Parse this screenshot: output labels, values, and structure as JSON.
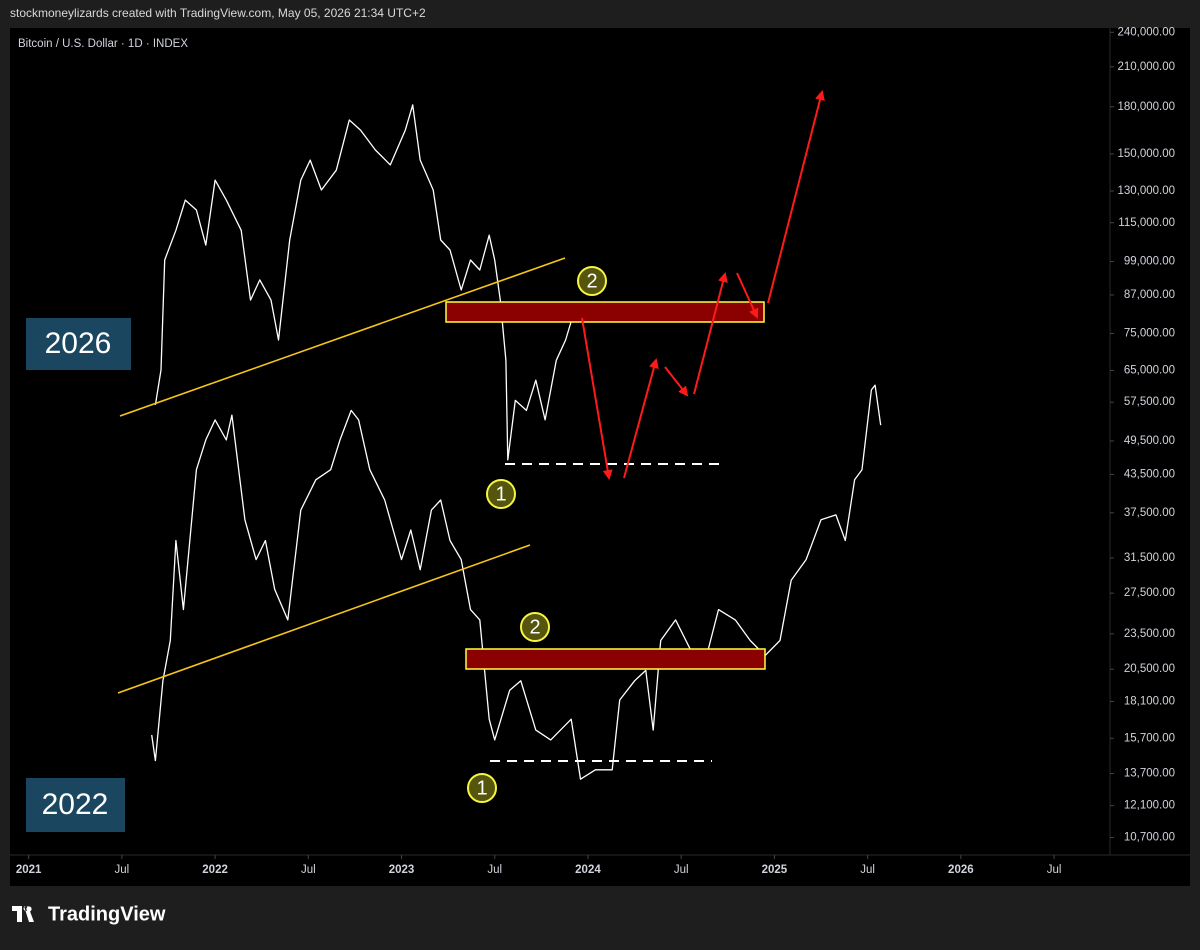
{
  "header": {
    "attribution": "stockmoneylizards created with TradingView.com, May 05, 2026 21:34 UTC+2",
    "logo": "TradingView"
  },
  "chart_data": {
    "type": "line",
    "title": "Bitcoin / U.S. Dollar · 1D · INDEX",
    "log_scale": true,
    "xlim": [
      2020.9,
      2026.8
    ],
    "xticks": [
      2021,
      {
        "value": 2021.5,
        "label": "Jul"
      },
      2022,
      {
        "value": 2022.5,
        "label": "Jul"
      },
      2023,
      {
        "value": 2023.5,
        "label": "Jul"
      },
      2024,
      {
        "value": 2024.5,
        "label": "Jul"
      },
      2025,
      {
        "value": 2025.5,
        "label": "Jul"
      },
      2026,
      {
        "value": 2026.5,
        "label": "Jul"
      }
    ],
    "ylim": [
      10000,
      244000
    ],
    "yticks": [
      {
        "value": 240000,
        "label": "240,000.00"
      },
      {
        "value": 210000,
        "label": "210,000.00"
      },
      {
        "value": 180000,
        "label": "180,000.00"
      },
      {
        "value": 150000,
        "label": "150,000.00"
      },
      {
        "value": 130000,
        "label": "130,000.00"
      },
      {
        "value": 115000,
        "label": "115,000.00"
      },
      {
        "value": 99000,
        "label": "99,000.00"
      },
      {
        "value": 87000,
        "label": "87,000.00"
      },
      {
        "value": 75000,
        "label": "75,000.00"
      },
      {
        "value": 65000,
        "label": "65,000.00"
      },
      {
        "value": 57500,
        "label": "57,500.00"
      },
      {
        "value": 49500,
        "label": "49,500.00"
      },
      {
        "value": 43500,
        "label": "43,500.00"
      },
      {
        "value": 37500,
        "label": "37,500.00"
      },
      {
        "value": 31500,
        "label": "31,500.00"
      },
      {
        "value": 27500,
        "label": "27,500.00"
      },
      {
        "value": 23500,
        "label": "23,500.00"
      },
      {
        "value": 20500,
        "label": "20,500.00"
      },
      {
        "value": 18100,
        "label": "18,100.00"
      },
      {
        "value": 15700,
        "label": "15,700.00"
      },
      {
        "value": 13700,
        "label": "13,700.00"
      },
      {
        "value": 12100,
        "label": "12,100.00"
      },
      {
        "value": 10700,
        "label": "10,700.00"
      }
    ],
    "series": [
      {
        "color": "#ffffff",
        "x": [
          2021.68,
          2021.71,
          2021.73,
          2021.79,
          2021.84,
          2021.9,
          2021.95,
          2022.0,
          2022.06,
          2022.14,
          2022.19,
          2022.24,
          2022.3,
          2022.34,
          2022.4,
          2022.46,
          2022.51,
          2022.57,
          2022.65,
          2022.72,
          2022.78,
          2022.86,
          2022.94,
          2023.02,
          2023.06,
          2023.1,
          2023.17,
          2023.21,
          2023.26,
          2023.32,
          2023.37,
          2023.42,
          2023.47,
          2023.5,
          2023.53,
          2023.56,
          2023.57,
          2023.61,
          2023.67,
          2023.72,
          2023.77,
          2023.83,
          2023.88,
          2023.92
        ],
        "values": [
          56900,
          65100,
          99600,
          111700,
          125500,
          120800,
          105500,
          135600,
          125500,
          111700,
          85300,
          92200,
          85300,
          73100,
          107600,
          135600,
          146500,
          130500,
          140900,
          171000,
          164500,
          152300,
          143800,
          164500,
          181300,
          146500,
          130500,
          107600,
          103500,
          88700,
          99600,
          95800,
          109600,
          99600,
          85300,
          67600,
          46000,
          57900,
          55700,
          62600,
          53700,
          67600,
          73100,
          80500
        ]
      },
      {
        "color": "#ffffff",
        "x": [
          2021.66,
          2021.68,
          2021.72,
          2021.76,
          2021.79,
          2021.83,
          2021.9,
          2021.95,
          2022.0,
          2022.06,
          2022.09,
          2022.16,
          2022.22,
          2022.27,
          2022.32,
          2022.39,
          2022.46,
          2022.54,
          2022.62,
          2022.67,
          2022.73,
          2022.77,
          2022.83,
          2022.91,
          2023.0,
          2023.05,
          2023.1,
          2023.16,
          2023.21,
          2023.26,
          2023.32,
          2023.37,
          2023.42,
          2023.47,
          2023.5,
          2023.58,
          2023.64,
          2023.72,
          2023.8,
          2023.91,
          2023.96,
          2024.04,
          2024.13,
          2024.17,
          2024.25,
          2024.31,
          2024.35,
          2024.39,
          2024.47,
          2024.55,
          2024.63,
          2024.7,
          2024.79,
          2024.87,
          2024.95,
          2025.03,
          2025.09,
          2025.17,
          2025.25,
          2025.33,
          2025.38,
          2025.43,
          2025.47,
          2025.52,
          2025.54,
          2025.57
        ],
        "values": [
          15900,
          14400,
          19600,
          22900,
          33700,
          25800,
          44300,
          49700,
          53700,
          49700,
          54700,
          36500,
          31300,
          33700,
          27900,
          24800,
          37900,
          42600,
          44300,
          49700,
          55700,
          53700,
          44300,
          39400,
          31300,
          35100,
          30100,
          37900,
          39400,
          33700,
          31300,
          25800,
          24800,
          16900,
          15600,
          18900,
          19600,
          16200,
          15600,
          16900,
          13400,
          13900,
          13900,
          18200,
          19600,
          20400,
          16200,
          22900,
          24800,
          22100,
          21200,
          25800,
          24800,
          22900,
          21600,
          22900,
          28900,
          31300,
          36500,
          37200,
          33700,
          42600,
          44300,
          60300,
          61400,
          52600
        ]
      }
    ],
    "annotations": {
      "fractal_labels": [
        "2026",
        "2022"
      ],
      "markers": [
        "2",
        "1",
        "2",
        "1"
      ]
    }
  }
}
